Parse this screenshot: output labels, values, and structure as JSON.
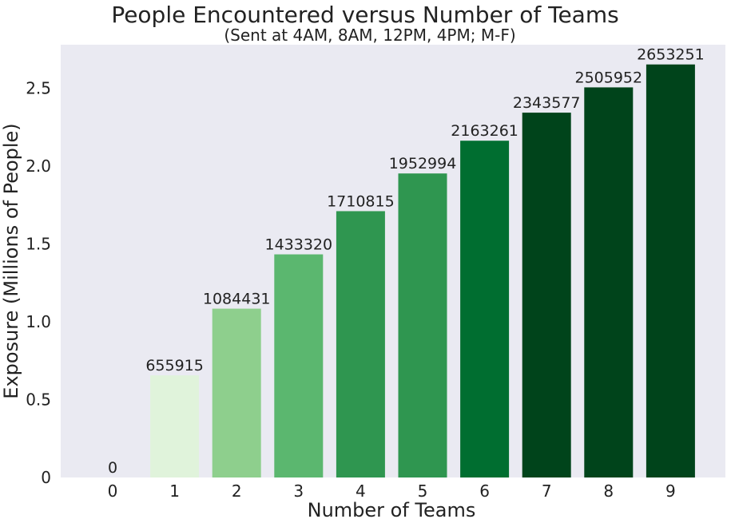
{
  "chart_data": {
    "type": "bar",
    "title": "People Encountered versus Number of Teams",
    "subtitle": "(Sent at 4AM, 8AM, 12PM, 4PM; M-F)",
    "xlabel": "Number of Teams",
    "ylabel": "Exposure (Millions of People)",
    "categories": [
      "0",
      "1",
      "2",
      "3",
      "4",
      "5",
      "6",
      "7",
      "8",
      "9"
    ],
    "values": [
      0,
      655915,
      1084431,
      1433320,
      1710815,
      1952994,
      2163261,
      2343577,
      2505952,
      2653251
    ],
    "data_labels": [
      "0",
      "655915",
      "1084431",
      "1433320",
      "1710815",
      "1952994",
      "2163261",
      "2343577",
      "2505952",
      "2653251"
    ],
    "ylim": [
      0,
      2.78
    ],
    "y_unit_divisor": 1000000,
    "yticks": [
      0,
      0.5,
      1.0,
      1.5,
      2.0,
      2.5
    ],
    "ytick_labels": [
      "0",
      "0.5",
      "1.0",
      "1.5",
      "2.0",
      "2.5"
    ],
    "grid": false,
    "colors": {
      "plot_background": "#eaeaf2",
      "bars": [
        "#f7fcf5",
        "#e0f3db",
        "#8ecf8d",
        "#5bb76f",
        "#2f9650",
        "#2f9650",
        "#006e30",
        "#00441b",
        "#00441b",
        "#00441b"
      ]
    }
  }
}
